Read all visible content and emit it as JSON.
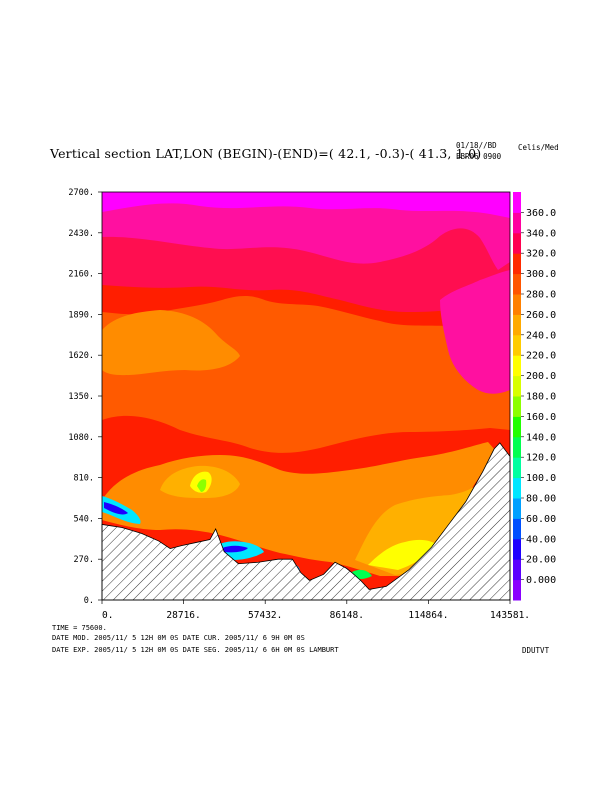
{
  "header": {
    "title": "Vertical section LAT,LON (BEGIN)-(END)=( 42.1, -0.3)-( 41.3,  1.0)",
    "date_line1": "01/18//BD",
    "date_line2": "EBR06 0900",
    "units": "Celis/Med"
  },
  "footer": {
    "time_line": "TIME =    75600.",
    "line2": "DATE MOD. 2005/11/ 5  12H 0M 0S   DATE CUR. 2005/11/ 6   9H 0M 0S",
    "line3": "DATE EXP.  2005/11/ 5  12H 0M 0S   DATE SEG. 2005/11/ 6   6H 0M 0S   LAMBURT",
    "tag": "DDUTVT"
  },
  "chart_data": {
    "type": "heatmap",
    "xlim": [
      0,
      143581
    ],
    "ylim": [
      0,
      2700
    ],
    "x_ticks": [
      "0.",
      "28716.",
      "57432.",
      "86148.",
      "114864.",
      "143581."
    ],
    "y_ticks": [
      "0.",
      "270.",
      "540.",
      "810.",
      "1080.",
      "1350.",
      "1620.",
      "1890.",
      "2160.",
      "2430.",
      "2700."
    ],
    "colorbar": {
      "labels": [
        "0.000",
        "20.00",
        "40.00",
        "60.00",
        "80.00",
        "100.0",
        "120.0",
        "140.0",
        "160.0",
        "180.0",
        "200.0",
        "220.0",
        "240.0",
        "260.0",
        "280.0",
        "300.0",
        "320.0",
        "340.0",
        "360.0"
      ],
      "colors": [
        "#8a00ff",
        "#5a00ff",
        "#1e00ff",
        "#0050ff",
        "#00a0ff",
        "#00e6ff",
        "#00ffa0",
        "#00ff50",
        "#20ff00",
        "#8cff00",
        "#d8ff00",
        "#ffff00",
        "#ffcc00",
        "#ffaa00",
        "#ff8000",
        "#ff5500",
        "#ff2a00",
        "#ff0050",
        "#ff00a0",
        "#ff00ff"
      ]
    },
    "fill_colors": {
      "c380": "#ff00ff",
      "c340": "#ff10a0",
      "c320": "#ff0e50",
      "c300": "#ff1e00",
      "c280": "#ff5a00",
      "c260": "#ff8c00",
      "c240": "#ffb000",
      "c220": "#ffff00"
    },
    "terrain": {
      "x": [
        0,
        7000,
        14000,
        20000,
        24000,
        28000,
        33000,
        38000,
        40000,
        43000,
        48000,
        55000,
        62000,
        67000,
        70000,
        73000,
        78000,
        82000,
        86000,
        88000,
        91000,
        94000,
        100000,
        108000,
        116000,
        122000,
        128000,
        134000,
        138000,
        140000,
        143581
      ],
      "y": [
        500,
        480,
        440,
        390,
        340,
        360,
        380,
        400,
        470,
        320,
        240,
        250,
        270,
        270,
        180,
        130,
        170,
        250,
        210,
        180,
        130,
        70,
        90,
        200,
        350,
        500,
        650,
        850,
        1000,
        1040,
        950
      ]
    }
  }
}
